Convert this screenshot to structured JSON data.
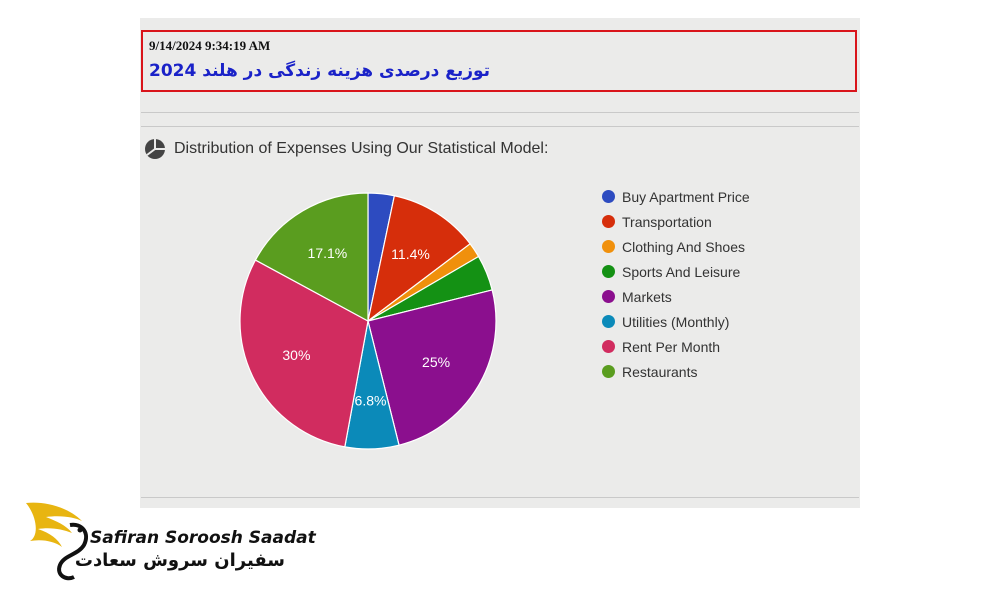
{
  "header": {
    "timestamp": "9/14/2024 9:34:19 AM",
    "title": "توزیع درصدی هزینه زندگی در هلند 2024"
  },
  "chart_section": {
    "icon": "pie-chart-icon",
    "heading": "Distribution of Expenses Using Our Statistical Model:"
  },
  "chart_data": {
    "type": "pie",
    "start_angle_deg": 0,
    "direction": "clockwise",
    "legend_position": "right",
    "slices": [
      {
        "label": "Buy Apartment Price",
        "value": 3.3,
        "color": "#2d4bc0",
        "data_label": ""
      },
      {
        "label": "Transportation",
        "value": 11.4,
        "color": "#d62e0b",
        "data_label": "11.4%"
      },
      {
        "label": "Clothing And Shoes",
        "value": 1.9,
        "color": "#f0900c",
        "data_label": ""
      },
      {
        "label": "Sports And Leisure",
        "value": 4.5,
        "color": "#149114",
        "data_label": ""
      },
      {
        "label": "Markets",
        "value": 25,
        "color": "#8b0f8e",
        "data_label": "25%"
      },
      {
        "label": "Utilities (Monthly)",
        "value": 6.8,
        "color": "#0b8ab9",
        "data_label": "6.8%"
      },
      {
        "label": "Rent Per Month",
        "value": 30,
        "color": "#d12c5f",
        "data_label": "30%"
      },
      {
        "label": "Restaurants",
        "value": 17.1,
        "color": "#5a9d1f",
        "data_label": "17.1%"
      }
    ]
  },
  "brand": {
    "name_en": "Safiran Soroosh Saadat",
    "name_fa": "سفیران سروش سعادت",
    "colors": {
      "gold": "#e8b511",
      "dark": "#111111"
    }
  }
}
